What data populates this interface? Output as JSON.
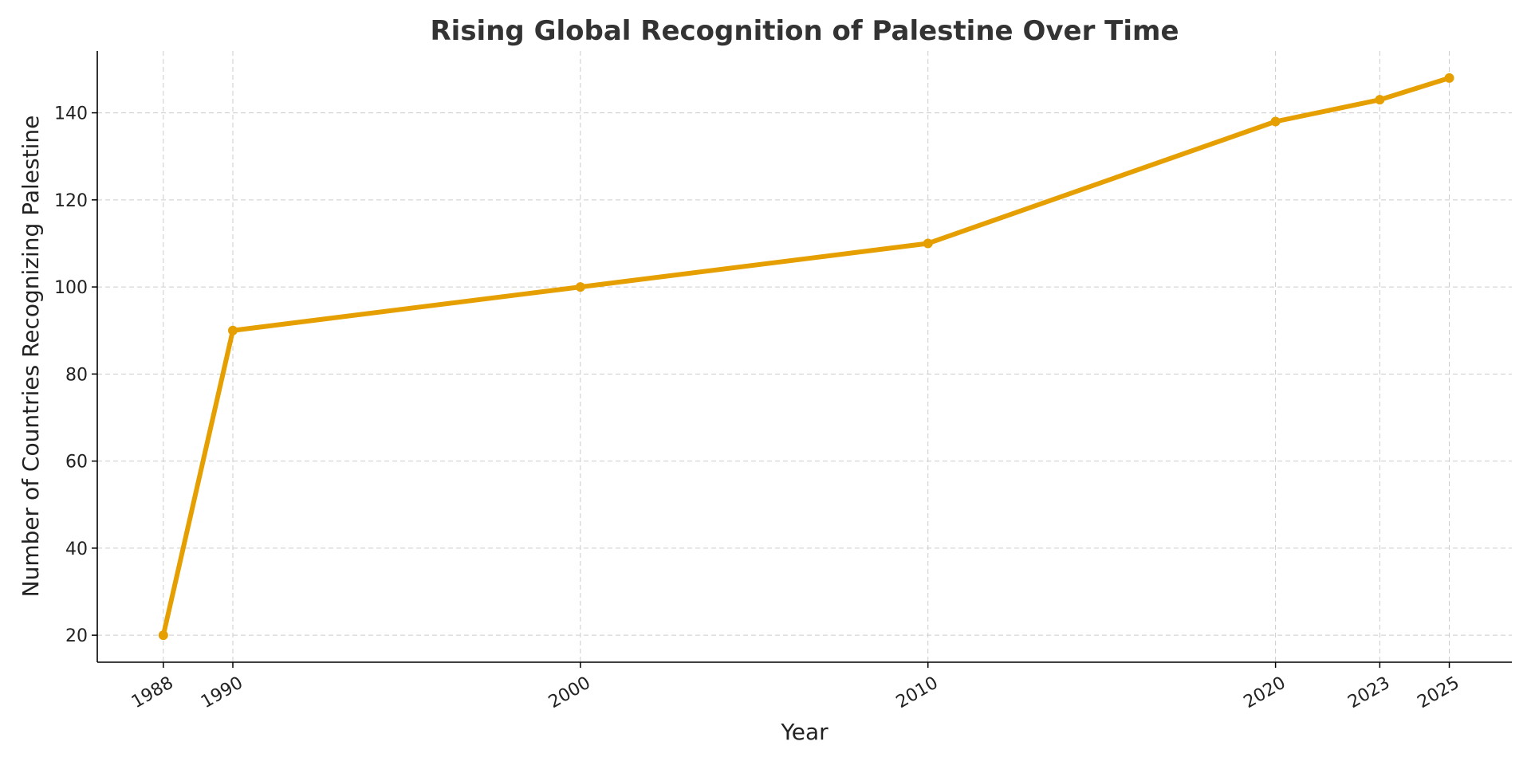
{
  "chart_data": {
    "type": "line",
    "title": "Rising Global Recognition of Palestine Over Time",
    "xlabel": "Year",
    "ylabel": "Number of Countries Recognizing Palestine",
    "x": [
      1988,
      1990,
      2000,
      2010,
      2020,
      2023,
      2025
    ],
    "x_tick_labels": [
      "1988",
      "1990",
      "2000",
      "2010",
      "2020",
      "2023",
      "2025"
    ],
    "series": [
      {
        "values": [
          20,
          90,
          100,
          110,
          138,
          143,
          148
        ],
        "color": "#e69f00",
        "marker": "circle"
      }
    ],
    "xlim": [
      1986.1,
      2026.8
    ],
    "ylim": [
      13.8,
      154.2
    ],
    "yticks": [
      20,
      40,
      60,
      80,
      100,
      120,
      140
    ],
    "grid": true,
    "legend": "none"
  }
}
